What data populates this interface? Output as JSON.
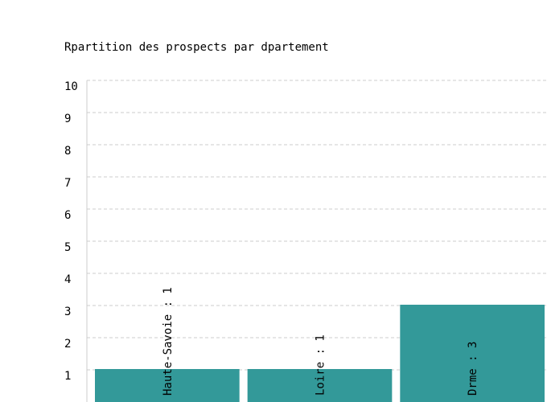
{
  "chart_data": {
    "type": "bar",
    "title": "Rpartition des prospects par dpartement",
    "categories": [
      "Haute-Savoie",
      "Loire",
      "Drme"
    ],
    "values": [
      1,
      1,
      3
    ],
    "labels": [
      "Haute-Savoie : 1",
      "Loire : 1",
      "Drme : 3"
    ],
    "ylim": [
      0,
      10
    ],
    "yticks": [
      "1",
      "2",
      "3",
      "4",
      "5",
      "6",
      "7",
      "8",
      "9",
      "10"
    ],
    "grid": true,
    "bar_color": "#339999"
  }
}
